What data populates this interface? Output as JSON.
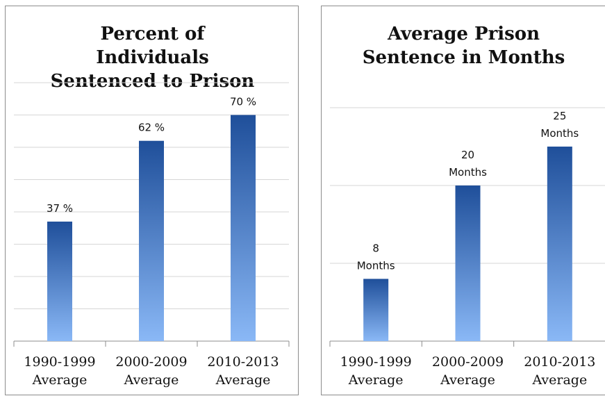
{
  "chart_data": [
    {
      "type": "bar",
      "title_lines": [
        "Percent of",
        "Individuals",
        "Sentenced to Prison"
      ],
      "categories": [
        [
          "1990-1999",
          "Average"
        ],
        [
          "2000-2009",
          "Average"
        ],
        [
          "2010-2013",
          "Average"
        ]
      ],
      "values": [
        37,
        62,
        70
      ],
      "data_labels": [
        [
          "37 %"
        ],
        [
          "62 %"
        ],
        [
          "70 %"
        ]
      ],
      "unit": "%",
      "ylim": [
        0,
        80
      ],
      "grid": true,
      "legend": "none",
      "bar_gradient": [
        "#1f4f9a",
        "#8ab8f6"
      ]
    },
    {
      "type": "bar",
      "title_lines": [
        "Average Prison",
        "Sentence in Months"
      ],
      "categories": [
        [
          "1990-1999",
          "Average"
        ],
        [
          "2000-2009",
          "Average"
        ],
        [
          "2010-2013",
          "Average"
        ]
      ],
      "values": [
        8,
        20,
        25
      ],
      "data_labels": [
        [
          "8",
          "Months"
        ],
        [
          "20",
          "Months"
        ],
        [
          "25",
          "Months"
        ]
      ],
      "unit": "Months",
      "ylim": [
        0,
        30
      ],
      "grid": true,
      "legend": "none",
      "bar_gradient": [
        "#1f4f9a",
        "#8ab8f6"
      ]
    }
  ]
}
